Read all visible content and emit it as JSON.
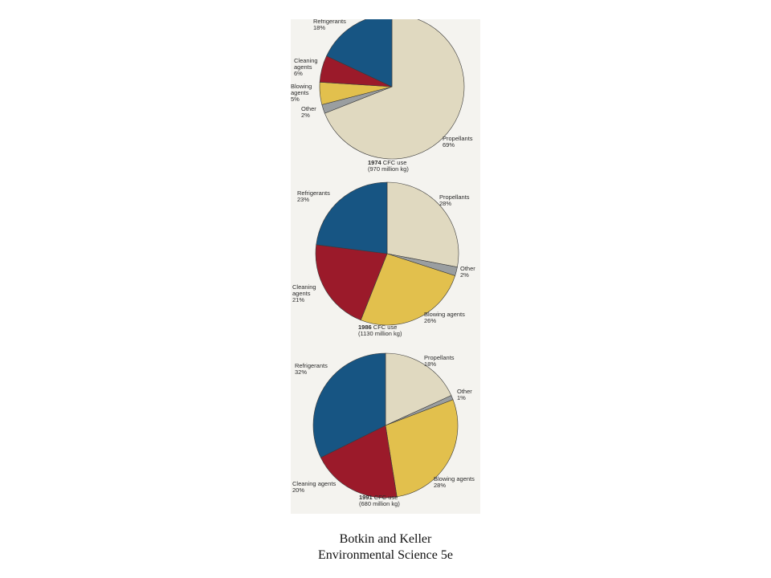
{
  "colors": {
    "Propellants": "#e0d9c0",
    "Other": "#9a9ea0",
    "Blowing agents": "#e2c04d",
    "Cleaning agents": "#9b1a2a",
    "Refrigerants": "#175583",
    "panel": "#f4f3ef"
  },
  "chart_data": [
    {
      "type": "pie",
      "caption_bold": "1974",
      "caption_rest": " CFC use",
      "caption_line2": "(970 million kg)",
      "slices": [
        {
          "category": "Propellants",
          "label": [
            "Propellants",
            "69%"
          ],
          "value": 69
        },
        {
          "category": "Other",
          "label": [
            "Other",
            "2%"
          ],
          "value": 2
        },
        {
          "category": "Blowing agents",
          "label": [
            "Blowing",
            "agents",
            "5%"
          ],
          "value": 5
        },
        {
          "category": "Cleaning agents",
          "label": [
            "Cleaning",
            "agents",
            "6%"
          ],
          "value": 6
        },
        {
          "category": "Refrigerants",
          "label": [
            "Refrigerants",
            "18%"
          ],
          "value": 18
        }
      ]
    },
    {
      "type": "pie",
      "caption_bold": "1986",
      "caption_rest": " CFC use",
      "caption_line2": "(1130 million kg)",
      "slices": [
        {
          "category": "Propellants",
          "label": [
            "Propellants",
            "28%"
          ],
          "value": 28
        },
        {
          "category": "Other",
          "label": [
            "Other",
            "2%"
          ],
          "value": 2
        },
        {
          "category": "Blowing agents",
          "label": [
            "Blowing agents",
            "26%"
          ],
          "value": 26
        },
        {
          "category": "Cleaning agents",
          "label": [
            "Cleaning",
            "agents",
            "21%"
          ],
          "value": 21
        },
        {
          "category": "Refrigerants",
          "label": [
            "Refrigerants",
            "23%"
          ],
          "value": 23
        }
      ]
    },
    {
      "type": "pie",
      "caption_bold": "1991",
      "caption_rest": " CFC use",
      "caption_line2": "(680 million kg)",
      "slices": [
        {
          "category": "Propellants",
          "label": [
            "Propellants",
            "18%"
          ],
          "value": 18
        },
        {
          "category": "Other",
          "label": [
            "Other",
            "1%"
          ],
          "value": 1
        },
        {
          "category": "Blowing agents",
          "label": [
            "Blowing agents",
            "28%"
          ],
          "value": 28
        },
        {
          "category": "Cleaning agents",
          "label": [
            "Cleaning agents",
            "20%"
          ],
          "value": 20
        },
        {
          "category": "Refrigerants",
          "label": [
            "Refrigerants",
            "32%"
          ],
          "value": 32
        }
      ]
    }
  ],
  "credit": {
    "line1": "Botkin and Keller",
    "line2": "Environmental Science 5e"
  }
}
